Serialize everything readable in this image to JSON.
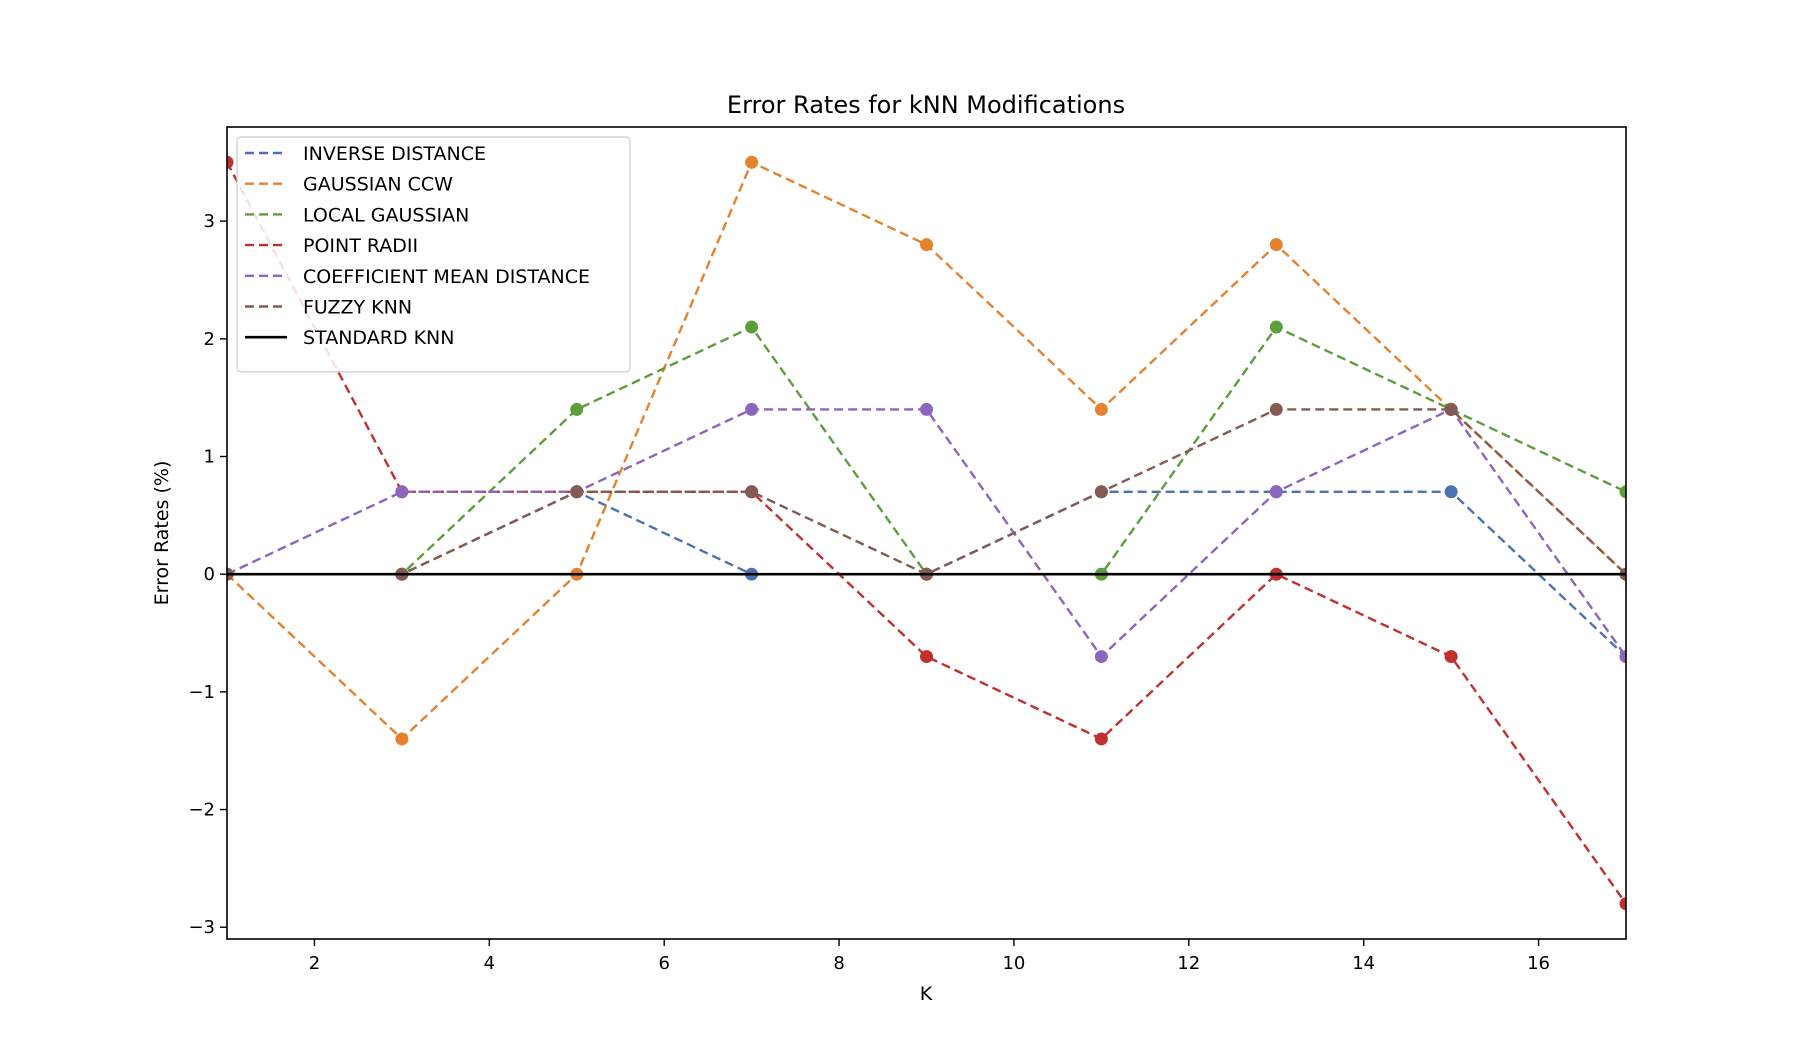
{
  "chart_data": {
    "type": "line",
    "title": "Error Rates for kNN Modifications",
    "xlabel": "K",
    "ylabel": "Error Rates (%)",
    "xlim": [
      1,
      17
    ],
    "ylim": [
      -3.1,
      3.8
    ],
    "x_ticks": [
      2,
      4,
      6,
      8,
      10,
      12,
      14,
      16
    ],
    "y_ticks": [
      -3,
      -2,
      -1,
      0,
      1,
      2,
      3
    ],
    "y_tick_labels": [
      "−3",
      "−2",
      "−1",
      "0",
      "1",
      "2",
      "3"
    ],
    "grid": false,
    "legend_position": "top-left",
    "x": [
      1,
      3,
      5,
      7,
      9,
      11,
      13,
      15,
      17
    ],
    "series": [
      {
        "name": "INVERSE DISTANCE",
        "color": "#4c72b0",
        "style": "dashed",
        "markers": true,
        "values": [
          0,
          0,
          0.7,
          0,
          0,
          0.7,
          0.7,
          0.7,
          -0.7
        ]
      },
      {
        "name": "GAUSSIAN CCW",
        "color": "#e5822e",
        "style": "dashed",
        "markers": true,
        "values": [
          0,
          -1.4,
          0,
          3.5,
          2.8,
          1.4,
          2.8,
          1.4,
          0
        ]
      },
      {
        "name": "LOCAL GAUSSIAN",
        "color": "#5d9e3c",
        "style": "dashed",
        "markers": true,
        "values": [
          0,
          0,
          1.4,
          2.1,
          0,
          0,
          2.1,
          1.4,
          0.7
        ]
      },
      {
        "name": "POINT RADII",
        "color": "#c0302f",
        "style": "dashed",
        "markers": true,
        "values": [
          3.5,
          0.7,
          0.7,
          0.7,
          -0.7,
          -1.4,
          0,
          -0.7,
          -2.8
        ]
      },
      {
        "name": "COEFFICIENT MEAN DISTANCE",
        "color": "#8a66bc",
        "style": "dashed",
        "markers": true,
        "values": [
          0,
          0.7,
          0.7,
          1.4,
          1.4,
          -0.7,
          0.7,
          1.4,
          -0.7
        ]
      },
      {
        "name": "FUZZY KNN",
        "color": "#845b53",
        "style": "dashed",
        "markers": true,
        "values": [
          0,
          0,
          0.7,
          0.7,
          0,
          0.7,
          1.4,
          1.4,
          0
        ]
      },
      {
        "name": "STANDARD KNN",
        "color": "#000000",
        "style": "solid",
        "markers": false,
        "values": [
          0,
          0,
          0,
          0,
          0,
          0,
          0,
          0,
          0
        ]
      }
    ]
  }
}
